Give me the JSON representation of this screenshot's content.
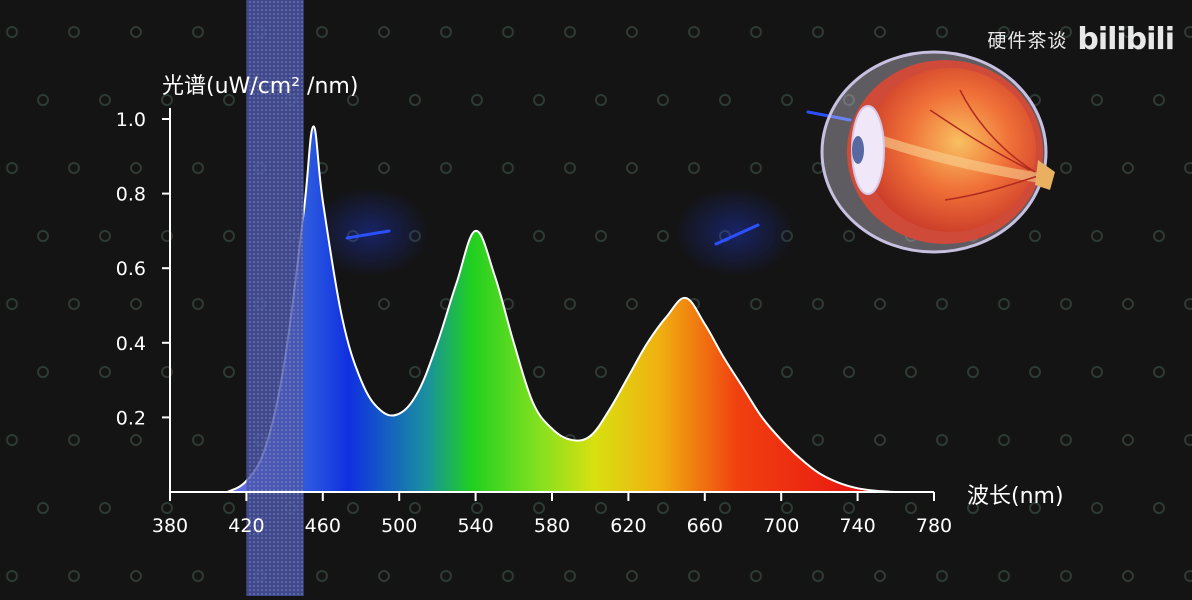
{
  "watermark": {
    "name": "硬件茶谈",
    "logo": "bilibili"
  },
  "chart_data": {
    "type": "area",
    "title": "",
    "ylabel": "光谱(uW/cm² /nm)",
    "xlabel": "波长(nm)",
    "xlim": [
      380,
      780
    ],
    "ylim": [
      0,
      1.0
    ],
    "xticks": [
      380,
      420,
      460,
      500,
      540,
      580,
      620,
      660,
      700,
      740,
      780
    ],
    "yticks": [
      0.2,
      0.4,
      0.6,
      0.8,
      1.0
    ],
    "x": [
      410,
      420,
      430,
      440,
      450,
      455,
      460,
      470,
      480,
      490,
      500,
      510,
      520,
      530,
      540,
      550,
      560,
      570,
      580,
      590,
      600,
      610,
      620,
      630,
      640,
      650,
      660,
      670,
      680,
      690,
      700,
      710,
      720,
      730,
      740,
      750,
      760
    ],
    "y": [
      0.0,
      0.03,
      0.12,
      0.35,
      0.75,
      0.98,
      0.78,
      0.47,
      0.3,
      0.22,
      0.21,
      0.27,
      0.4,
      0.56,
      0.7,
      0.58,
      0.4,
      0.24,
      0.17,
      0.14,
      0.15,
      0.22,
      0.31,
      0.4,
      0.47,
      0.52,
      0.45,
      0.36,
      0.28,
      0.2,
      0.14,
      0.09,
      0.05,
      0.025,
      0.01,
      0.003,
      0.0
    ],
    "highlight_band": [
      420,
      450
    ],
    "grid": false,
    "colors": {
      "band": "#4a55a8",
      "line": "#ffffff",
      "axis": "#ffffff",
      "blue": "#1538e0",
      "green": "#22d622",
      "yellow": "#e0d010",
      "red": "#ee2010"
    }
  }
}
